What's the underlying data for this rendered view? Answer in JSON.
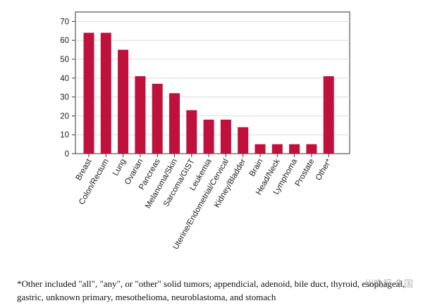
{
  "chart_data": {
    "type": "bar",
    "categories": [
      "Breast",
      "Colon/Rectum",
      "Lung",
      "Ovarian",
      "Pancreas",
      "Melanoma/Skin",
      "Sarcoma/GIST",
      "Leukemia",
      "Uterine/Endometrial/Cervical",
      "Kidney/Bladder",
      "Brain",
      "Head/Neck",
      "Lymphoma",
      "Prostate",
      "Other*"
    ],
    "values": [
      64,
      64,
      55,
      41,
      37,
      32,
      23,
      18,
      18,
      14,
      5,
      5,
      5,
      5,
      41
    ],
    "ylim": [
      0,
      75
    ],
    "yticks": [
      0,
      10,
      20,
      30,
      40,
      50,
      60,
      70
    ],
    "title": "",
    "xlabel": "",
    "ylabel": "",
    "grid": "horizontal",
    "bar_color": "#c0103c"
  },
  "footnote": "*Other included \"all\", \"any\", or \"other\" solid tumors; appendicial, adenoid, bile duct, thyroid, esophageal, gastric, unknown primary, mesothelioma, neuroblastoma, and stomach",
  "watermark": "州晚报 朱国"
}
